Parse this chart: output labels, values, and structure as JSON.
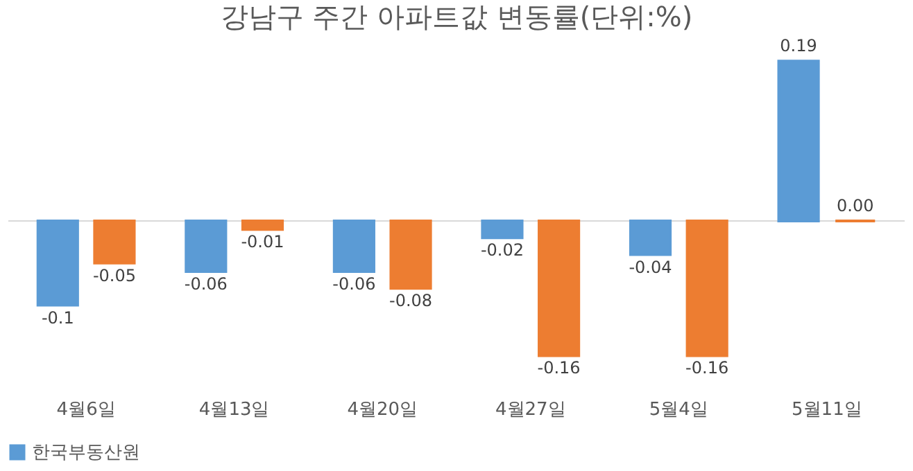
{
  "chart_data": {
    "type": "bar",
    "title": "강남구 주간 아파트값 변동률(단위:%)",
    "categories": [
      "4월6일",
      "4월13일",
      "4월20일",
      "4월27일",
      "5월4일",
      "5월11일"
    ],
    "series": [
      {
        "name": "한국부동산원",
        "color": "#5b9bd5",
        "values": [
          -0.1,
          -0.06,
          -0.06,
          -0.02,
          -0.04,
          0.19
        ],
        "value_labels": [
          "-0.1",
          "-0.06",
          "-0.06",
          "-0.02",
          "-0.04",
          "0.19"
        ]
      },
      {
        "color": "#ed7d31",
        "values": [
          -0.05,
          -0.01,
          -0.08,
          -0.16,
          -0.16,
          0.0
        ],
        "value_labels": [
          "-0.05",
          "-0.01",
          "-0.08",
          "-0.16",
          "-0.16",
          "0.00"
        ]
      }
    ],
    "tick_labels": "x",
    "grid": false,
    "legend": "bottom"
  }
}
